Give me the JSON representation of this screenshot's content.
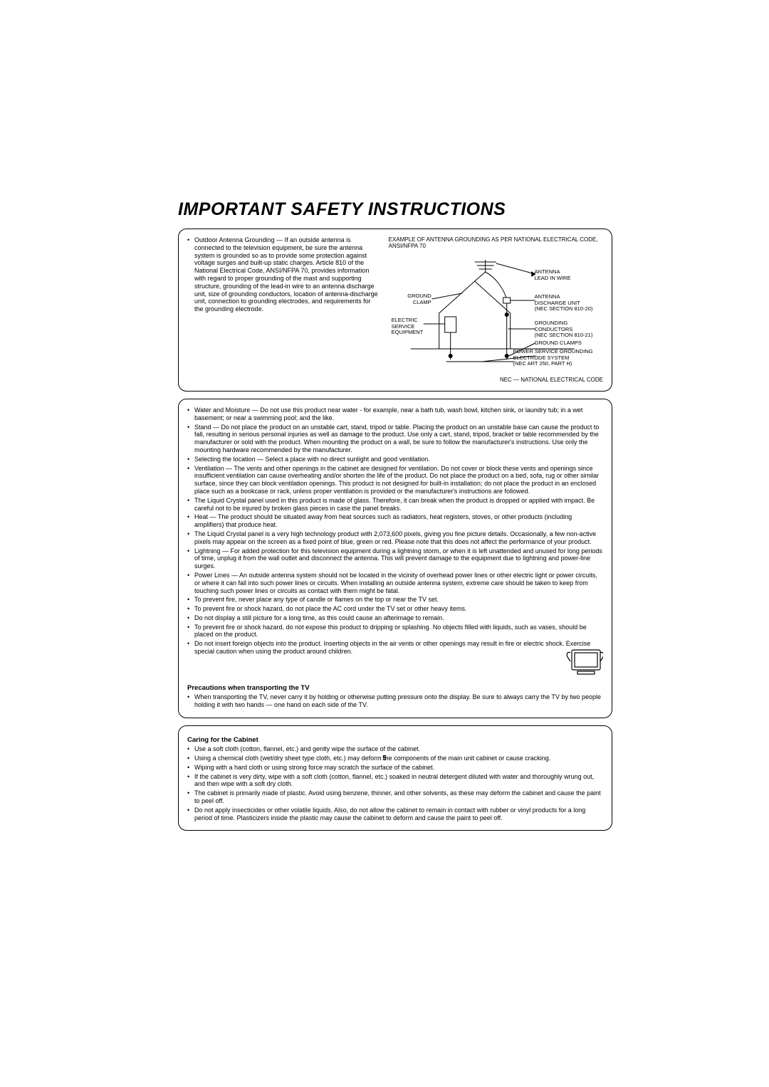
{
  "title": "IMPORTANT SAFETY INSTRUCTIONS",
  "page_number": "5",
  "antenna": {
    "text": "Outdoor Antenna Grounding — If an outside antenna is connected to the television equipment, be sure the antenna system is grounded so as to provide some protection against voltage surges and built-up static charges. Article 810 of the National Electrical Code, ANSI/NFPA 70, provides information with regard to proper grounding of the mast and supporting structure, grounding of the lead-in wire to an antenna discharge unit, size of grounding conductors, location of antenna-discharge unit, connection to grounding electrodes, and requirements for the grounding electrode.",
    "caption": "EXAMPLE OF ANTENNA GROUNDING AS PER NATIONAL ELECTRICAL CODE, ANSI/NFPA 70",
    "labels": {
      "lead_in": "ANTENNA\nLEAD IN WIRE",
      "ground_clamp_top": "GROUND\nCLAMP",
      "discharge": "ANTENNA\nDISCHARGE UNIT\n(NEC SECTION 810-20)",
      "service": "ELECTRIC\nSERVICE\nEQUIPMENT",
      "conductors": "GROUNDING\nCONDUCTORS\n(NEC SECTION 810-21)",
      "ground_clamps": "GROUND CLAMPS",
      "electrode": "POWER SERVICE GROUNDING\nELECTRODE SYSTEM\n(NEC ART 250, PART H)"
    },
    "note": "NEC — NATIONAL ELECTRICAL CODE"
  },
  "main_bullets": [
    "Water and Moisture — Do not use this product near water - for example, near a bath tub, wash bowl, kitchen sink, or laundry tub; in a wet basement; or near a swimming pool; and the like.",
    "Stand — Do not place the product on an unstable cart, stand, tripod or table. Placing the product on an unstable base can cause the product to fall, resulting in serious personal injuries as well as damage to the product. Use only a cart, stand, tripod, bracket or table recommended by the manufacturer or sold with the product. When mounting the product on a wall, be sure to follow the manufacturer's instructions. Use only the mounting hardware recommended by the manufacturer.",
    "Selecting the location — Select a place with no direct sunlight and good ventilation.",
    "Ventilation — The vents and other openings in the cabinet are designed for ventilation. Do not cover or block these vents and openings since insufficient ventilation can cause overheating and/or shorten the life of the product. Do not place the product on a bed, sofa, rug or other similar surface, since they can block ventilation openings. This product is not designed for built-in installation; do not place the product in an enclosed place such as a bookcase or rack, unless proper ventilation is provided or the manufacturer's instructions are followed.",
    "The Liquid Crystal panel used in this product is made of glass. Therefore, it can break when the product is dropped or applied with impact. Be careful not to be injured by broken glass pieces in case the panel breaks.",
    "Heat — The product should be situated away from heat sources such as radiators, heat registers, stoves, or other products (including amplifiers) that produce heat.",
    "The Liquid Crystal panel is a very high technology product with 2,073,600 pixels, giving you fine picture details. Occasionally, a few non-active pixels may appear on the screen as a fixed point of blue, green or red. Please note that this does not affect the performance of your product.",
    "Lightning — For added protection for this television equipment during a lightning storm, or when it is left unattended and unused for long periods of time, unplug it from the wall outlet and disconnect the antenna. This will prevent damage to the equipment due to lightning and power-line surges.",
    "Power Lines — An outside antenna system should not be located in the vicinity of overhead power lines or other electric light or power circuits, or where it can fall into such power lines or circuits. When installing an outside antenna system, extreme care should be taken to keep from touching such power lines or circuits as contact with them might be fatal.",
    "To prevent fire, never place any type of candle or flames on the top or near the TV set.",
    "To prevent fire or shock hazard, do not place the AC cord under the TV set or other heavy items.",
    "Do not display a still picture for a long time, as this could cause an afterimage to remain.",
    "To prevent fire or shock hazard, do not expose this product to dripping or splashing. No objects filled with liquids, such as vases, should be placed on the product.",
    "Do not insert foreign objects into the product. Inserting objects in the air vents or other openings may result in fire or electric shock. Exercise special caution when using the product around children."
  ],
  "transport": {
    "heading": "Precautions when transporting the TV",
    "text": "When transporting the TV, never carry it by holding or otherwise putting pressure onto the display. Be sure to always carry the TV by two people holding it with two hands — one hand on each side of the TV."
  },
  "cabinet": {
    "heading": "Caring for the Cabinet",
    "bullets": [
      "Use a soft cloth (cotton, flannel, etc.) and gently wipe the surface of the cabinet.",
      "Using a chemical cloth (wet/dry sheet type cloth, etc.) may deform the components of the main unit cabinet or cause cracking.",
      "Wiping with a hard cloth or using strong force may scratch the surface of the cabinet.",
      "If the cabinet is very dirty, wipe with a soft cloth (cotton, flannel, etc.) soaked in neutral detergent diluted with water and thoroughly wrung out, and then wipe with a soft dry cloth.",
      "The cabinet is primarily made of plastic. Avoid using benzene, thinner, and other solvents, as these may deform the cabinet and cause the paint to peel off.",
      "Do not apply insecticides or other volatile liquids. Also, do not allow the cabinet to remain in contact with rubber or vinyl products for a long period of time. Plasticizers inside the plastic may cause the cabinet to deform and cause the paint to peel off."
    ]
  }
}
